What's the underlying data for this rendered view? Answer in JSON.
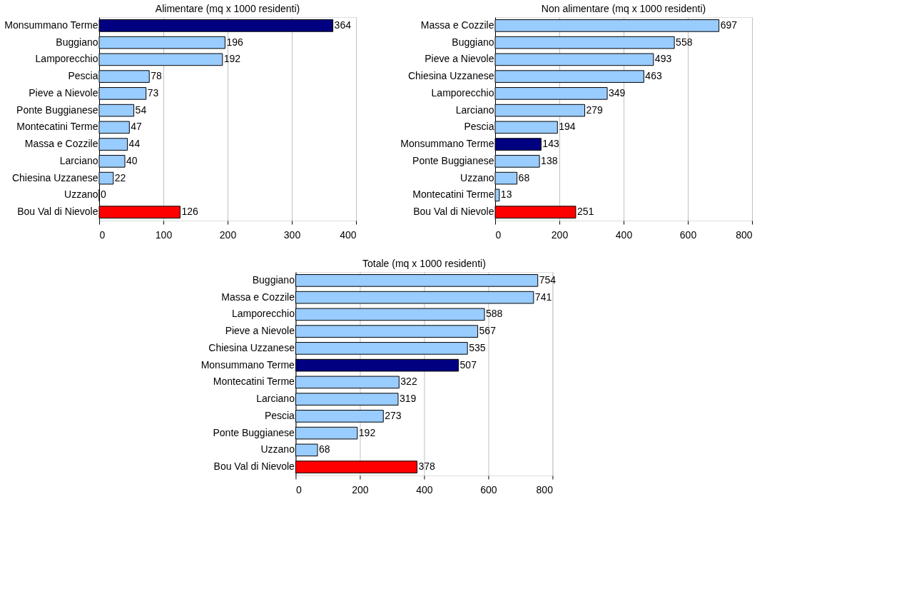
{
  "chart_data": [
    {
      "type": "bar",
      "orientation": "horizontal",
      "title": "Alimentare (mq x 1000 residenti)",
      "categories": [
        "Monsummano Terme",
        "Buggiano",
        "Lamporecchio",
        "Pescia",
        "Pieve a Nievole",
        "Ponte Buggianese",
        "Montecatini Terme",
        "Massa e Cozzile",
        "Larciano",
        "Chiesina Uzzanese",
        "Uzzano",
        "Bou Val di Nievole"
      ],
      "values": [
        364,
        196,
        192,
        78,
        73,
        54,
        47,
        44,
        40,
        22,
        0,
        126
      ],
      "colors": [
        "#000080",
        "#99ccff",
        "#99ccff",
        "#99ccff",
        "#99ccff",
        "#99ccff",
        "#99ccff",
        "#99ccff",
        "#99ccff",
        "#99ccff",
        "#99ccff",
        "#ff0000"
      ],
      "xlim": [
        0,
        400
      ],
      "xticks": [
        0,
        100,
        200,
        300,
        400
      ],
      "grid": "x",
      "data_labels": true
    },
    {
      "type": "bar",
      "orientation": "horizontal",
      "title": "Non alimentare (mq x 1000 residenti)",
      "categories": [
        "Massa e Cozzile",
        "Buggiano",
        "Pieve a Nievole",
        "Chiesina Uzzanese",
        "Lamporecchio",
        "Larciano",
        "Pescia",
        "Monsummano Terme",
        "Ponte Buggianese",
        "Uzzano",
        "Montecatini Terme",
        "Bou Val di Nievole"
      ],
      "values": [
        697,
        558,
        493,
        463,
        349,
        279,
        194,
        143,
        138,
        68,
        13,
        251
      ],
      "colors": [
        "#99ccff",
        "#99ccff",
        "#99ccff",
        "#99ccff",
        "#99ccff",
        "#99ccff",
        "#99ccff",
        "#000080",
        "#99ccff",
        "#99ccff",
        "#99ccff",
        "#ff0000"
      ],
      "xlim": [
        0,
        800
      ],
      "xticks": [
        0,
        200,
        400,
        600,
        800
      ],
      "grid": "x",
      "data_labels": true
    },
    {
      "type": "bar",
      "orientation": "horizontal",
      "title": "Totale (mq x 1000 residenti)",
      "categories": [
        "Buggiano",
        "Massa e Cozzile",
        "Lamporecchio",
        "Pieve a Nievole",
        "Chiesina Uzzanese",
        "Monsummano Terme",
        "Montecatini Terme",
        "Larciano",
        "Pescia",
        "Ponte Buggianese",
        "Uzzano",
        "Bou Val di Nievole"
      ],
      "values": [
        754,
        741,
        588,
        567,
        535,
        507,
        322,
        319,
        273,
        192,
        68,
        378
      ],
      "colors": [
        "#99ccff",
        "#99ccff",
        "#99ccff",
        "#99ccff",
        "#99ccff",
        "#000080",
        "#99ccff",
        "#99ccff",
        "#99ccff",
        "#99ccff",
        "#99ccff",
        "#ff0000"
      ],
      "xlim": [
        0,
        800
      ],
      "xticks": [
        0,
        200,
        400,
        600,
        800
      ],
      "grid": "x",
      "data_labels": true
    }
  ]
}
